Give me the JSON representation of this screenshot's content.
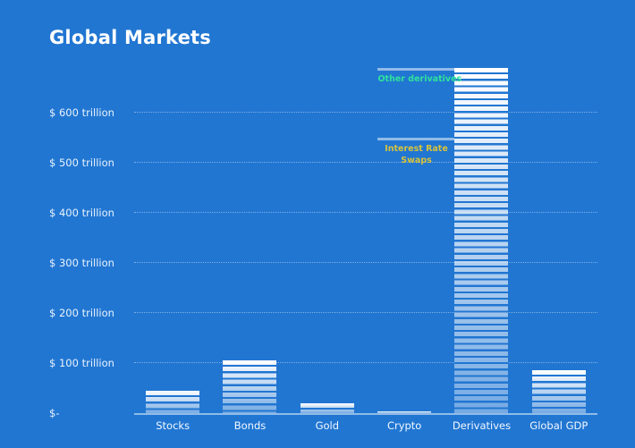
{
  "title": "Global Markets",
  "colors": {
    "background": "#2176d2",
    "bar": "#ffffff",
    "gridline": "rgba(255,255,255,0.42)",
    "axis_line": "rgba(255,255,255,0.5)",
    "annotation_green": "#2fe39c",
    "annotation_yellow": "#d6c33c",
    "text": "#ffffff"
  },
  "chart_data": {
    "type": "bar",
    "title": "Global Markets",
    "unit": "trillion USD",
    "categories": [
      "Stocks",
      "Bonds",
      "Gold",
      "Crypto",
      "Derivatives",
      "Global GDP"
    ],
    "values": [
      45,
      105,
      20,
      3,
      690,
      85
    ],
    "ylim": [
      0,
      700
    ],
    "grid": "horizontal dotted",
    "legend": false,
    "yticks": [
      {
        "value": 600,
        "label": "$ 600 trillion"
      },
      {
        "value": 500,
        "label": "$ 500 trillion"
      },
      {
        "value": 400,
        "label": "$ 400 trillion"
      },
      {
        "value": 300,
        "label": "$ 300 trillion"
      },
      {
        "value": 200,
        "label": "$ 200 trillion"
      },
      {
        "value": 100,
        "label": "$ 100 trillion"
      },
      {
        "value": 0,
        "label": "$-"
      }
    ],
    "annotations": [
      {
        "name": "other-derivatives",
        "value": 690,
        "color": "#2fe39c",
        "text_lines": [
          "Other derivatives"
        ],
        "attached_to": "Derivatives"
      },
      {
        "name": "interest-rate-swaps",
        "value": 550,
        "color": "#d6c33c",
        "text_lines": [
          "Interest Rate",
          "Swaps"
        ],
        "attached_to": "Derivatives"
      }
    ]
  }
}
